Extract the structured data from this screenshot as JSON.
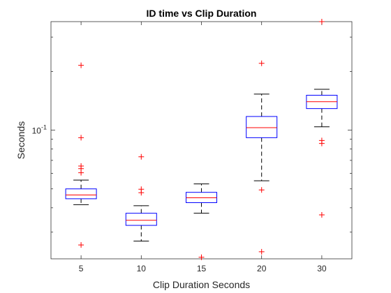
{
  "chart_data": {
    "type": "box",
    "title": "ID time vs Clip Duration",
    "xlabel": "Clip Duration Seconds",
    "ylabel": "Seconds",
    "yscale": "log",
    "ylim": [
      0.0219,
      0.36
    ],
    "ytick": {
      "base": "10",
      "exponent": "-1",
      "value": 0.1
    },
    "categories": [
      "5",
      "10",
      "15",
      "20",
      "30"
    ],
    "boxes": [
      {
        "category": "5",
        "whisker_low": 0.0415,
        "q1": 0.0445,
        "median": 0.0465,
        "q3": 0.05,
        "whisker_high": 0.0555,
        "outliers": [
          0.0258,
          0.0605,
          0.0635,
          0.0655,
          0.0915,
          0.215
        ]
      },
      {
        "category": "10",
        "whisker_low": 0.027,
        "q1": 0.0325,
        "median": 0.0345,
        "q3": 0.0375,
        "whisker_high": 0.041,
        "outliers": [
          0.0478,
          0.0498,
          0.073
        ]
      },
      {
        "category": "15",
        "whisker_low": 0.0375,
        "q1": 0.0425,
        "median": 0.045,
        "q3": 0.048,
        "whisker_high": 0.053,
        "outliers": [
          0.0223
        ]
      },
      {
        "category": "20",
        "whisker_low": 0.055,
        "q1": 0.0915,
        "median": 0.103,
        "q3": 0.1175,
        "whisker_high": 0.153,
        "outliers": [
          0.0238,
          0.0494,
          0.22
        ]
      },
      {
        "category": "30",
        "whisker_low": 0.104,
        "q1": 0.129,
        "median": 0.14,
        "q3": 0.151,
        "whisker_high": 0.162,
        "outliers": [
          0.0368,
          0.0855,
          0.0885,
          0.36
        ]
      }
    ],
    "colors": {
      "box": "#0000ff",
      "median": "#ff0000",
      "whisker": "#000000",
      "outlier": "#ff0000",
      "axes": "#262626"
    },
    "grid": false,
    "legend": "none"
  }
}
